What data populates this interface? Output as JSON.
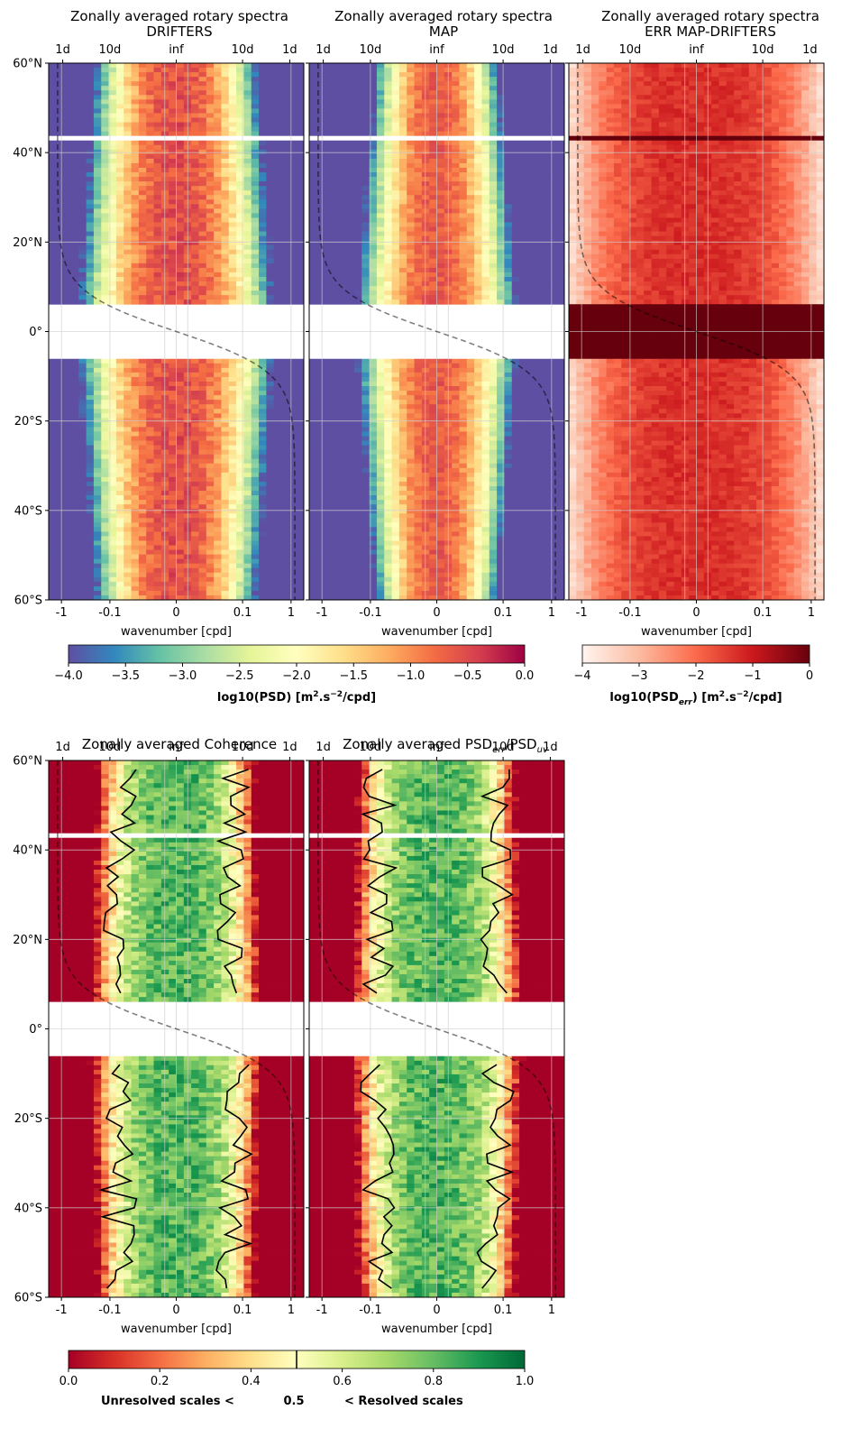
{
  "chart_data": [
    {
      "type": "heatmap",
      "title": "Zonally averaged rotary spectra",
      "subtitle": "DRIFTERS",
      "xlabel": "wavenumber [cpd]",
      "x_ticks": [
        "-1",
        "-0.1",
        "0",
        "0.1",
        "1"
      ],
      "top_ticks": [
        "1d",
        "10d",
        "inf",
        "10d",
        "1d"
      ],
      "y_ticks": [
        "60°N",
        "40°N",
        "20°N",
        "0°",
        "20°S",
        "40°S",
        "60°S"
      ],
      "ylim": [
        -60,
        60
      ],
      "colormap": "Spectral_r",
      "clim": [
        -4.0,
        0.0
      ],
      "colorbar_label": "log10(PSD) [m².s⁻²/cpd]"
    },
    {
      "type": "heatmap",
      "title": "Zonally averaged rotary spectra",
      "subtitle": "MAP",
      "xlabel": "wavenumber [cpd]",
      "x_ticks": [
        "-1",
        "-0.1",
        "0",
        "0.1",
        "1"
      ],
      "top_ticks": [
        "1d",
        "10d",
        "inf",
        "10d",
        "1d"
      ],
      "ylim": [
        -60,
        60
      ],
      "colormap": "Spectral_r",
      "clim": [
        -4.0,
        0.0
      ]
    },
    {
      "type": "heatmap",
      "title": "Zonally averaged rotary spectra",
      "subtitle": "ERR MAP-DRIFTERS",
      "xlabel": "wavenumber [cpd]",
      "x_ticks": [
        "-1",
        "-0.1",
        "0",
        "0.1",
        "1"
      ],
      "top_ticks": [
        "1d",
        "10d",
        "inf",
        "10d",
        "1d"
      ],
      "ylim": [
        -60,
        60
      ],
      "colormap": "Reds",
      "clim": [
        -4,
        0
      ],
      "colorbar_label": "log10(PSDerr) [m².s⁻²/cpd]"
    },
    {
      "type": "heatmap",
      "title": "Zonally averaged Coherence",
      "xlabel": "wavenumber [cpd]",
      "x_ticks": [
        "-1",
        "-0.1",
        "0",
        "0.1",
        "1"
      ],
      "top_ticks": [
        "1d",
        "10d",
        "inf",
        "10d",
        "1d"
      ],
      "y_ticks": [
        "60°N",
        "40°N",
        "20°N",
        "0°",
        "20°S",
        "40°S",
        "60°S"
      ],
      "ylim": [
        -60,
        60
      ],
      "colormap": "RdYlGn",
      "clim": [
        0.0,
        1.0
      ],
      "contour_level": 0.5
    },
    {
      "type": "heatmap",
      "title": "Zonally averaged PSDerr/PSDuv",
      "xlabel": "wavenumber [cpd]",
      "x_ticks": [
        "-1",
        "-0.1",
        "0",
        "0.1",
        "1"
      ],
      "top_ticks": [
        "1d",
        "10d",
        "inf",
        "10d",
        "1d"
      ],
      "ylim": [
        -60,
        60
      ],
      "colormap": "RdYlGn",
      "clim": [
        0.0,
        1.0
      ],
      "contour_level": 0.5
    }
  ],
  "colorbars": {
    "spectral": {
      "ticks": [
        "−4.0",
        "−3.5",
        "−3.0",
        "−2.5",
        "−2.0",
        "−1.5",
        "−1.0",
        "−0.5",
        "0.0"
      ],
      "label_main": "log10(PSD) [m",
      "label_sup1": "2",
      "label_mid": ".s",
      "label_sup2": "−2",
      "label_end": "/cpd]"
    },
    "reds": {
      "ticks": [
        "−4",
        "−3",
        "−2",
        "−1",
        "0"
      ],
      "label_main": "log10(PSD",
      "label_sub": "err",
      "label_mid": ") [m",
      "label_sup1": "2",
      "label_mid2": ".s",
      "label_sup2": "−2",
      "label_end": "/cpd]"
    },
    "coherence": {
      "ticks": [
        "0.0",
        "0.2",
        "0.4",
        "0.6",
        "0.8",
        "1.0"
      ],
      "label_left": "Unresolved scales <",
      "label_mid": "0.5",
      "label_right": "< Resolved scales"
    }
  },
  "panel_titles": {
    "p1_line1": "Zonally averaged rotary spectra",
    "p1_line2": "DRIFTERS",
    "p2_line1": "Zonally averaged rotary spectra",
    "p2_line2": "MAP",
    "p3_line1": "Zonally averaged rotary spectra",
    "p3_line2": "ERR MAP-DRIFTERS",
    "p4_line1": "Zonally averaged Coherence",
    "p5_pre": "Zonally averaged PSD",
    "p5_sub1": "err",
    "p5_mid": "/PSD",
    "p5_sub2": "uv"
  }
}
